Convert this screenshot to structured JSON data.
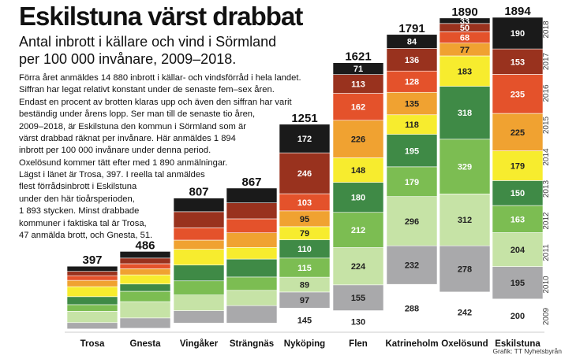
{
  "header": {
    "title": "Eskilstuna värst drabbat",
    "subtitle": "Antal inbrott i källare och vind i Sörmland per 100 000 invånare, 2009–2018.",
    "body_1": "Förra året anmäldes 14 880 inbrott i källar- och vindsförråd i hela landet.\nSiffran har legat relativt konstant under de senaste fem–sex åren.\nEndast en procent av brotten klaras upp och även den siffran har varit\nbeständig under årens lopp. Ser man till de senaste tio åren,\n2009–2018, är Eskilstuna den kommun i Sörmland som är\nvärst drabbad räknat per invånare. Här anmäldes 1 894\ninbrott per 100 000 invånare under denna period.\nOxelösund kommer tätt efter med 1 890 anmälningar.",
    "body_2": "Lägst i länet är Trosa, 397. I reella tal anmäldes\nflest förrådsinbrott i Eskilstuna\nunder den här tioårsperioden,\n1 893 stycken. Minst drabbade\nkommuner i faktiska tal är Trosa,\n47 anmälda brott, och Gnesta, 51.",
    "credit": "Grafik: TT Nyhetsbyrån"
  },
  "chart_data": {
    "type": "bar",
    "stacked": true,
    "categories": [
      "Trosa",
      "Gnesta",
      "Vingåker",
      "Strängnäs",
      "Nyköping",
      "Flen",
      "Katrineholm",
      "Oxelösund",
      "Eskilstuna"
    ],
    "totals": [
      397,
      486,
      807,
      867,
      1251,
      1621,
      1791,
      1890,
      1894
    ],
    "years": [
      "2009",
      "2010",
      "2011",
      "2012",
      "2013",
      "2014",
      "2015",
      "2016",
      "2017",
      "2018"
    ],
    "colors": [
      "#ffffff",
      "#a9a9ab",
      "#c6e3a6",
      "#7cbd52",
      "#3f8a46",
      "#f7ec2e",
      "#f0a231",
      "#e4522b",
      "#99321e",
      "#1a1a1a"
    ],
    "series": [
      {
        "name": "2009",
        "values": [
          20,
          24,
          55,
          55,
          145,
          130,
          288,
          242,
          200
        ]
      },
      {
        "name": "2010",
        "values": [
          38,
          62,
          75,
          105,
          97,
          155,
          232,
          278,
          195
        ]
      },
      {
        "name": "2011",
        "values": [
          68,
          98,
          94,
          92,
          89,
          224,
          296,
          312,
          204
        ]
      },
      {
        "name": "2012",
        "values": [
          40,
          62,
          85,
          80,
          115,
          212,
          179,
          329,
          163
        ]
      },
      {
        "name": "2013",
        "values": [
          48,
          44,
          95,
          108,
          110,
          180,
          195,
          318,
          150
        ]
      },
      {
        "name": "2014",
        "values": [
          60,
          55,
          95,
          70,
          79,
          148,
          118,
          183,
          179
        ]
      },
      {
        "name": "2015",
        "values": [
          38,
          37,
          55,
          88,
          95,
          226,
          135,
          77,
          225
        ]
      },
      {
        "name": "2016",
        "values": [
          28,
          30,
          74,
          84,
          103,
          162,
          128,
          68,
          235
        ]
      },
      {
        "name": "2017",
        "values": [
          26,
          34,
          97,
          96,
          246,
          113,
          136,
          50,
          153
        ]
      },
      {
        "name": "2018",
        "values": [
          31,
          40,
          82,
          89,
          172,
          71,
          84,
          33,
          190
        ]
      }
    ],
    "labeled_categories": [
      "Nyköping",
      "Flen",
      "Katrineholm",
      "Oxelösund",
      "Eskilstuna"
    ],
    "ylim": [
      0,
      1894
    ],
    "grid": false,
    "legend": "year labels along the right side"
  }
}
